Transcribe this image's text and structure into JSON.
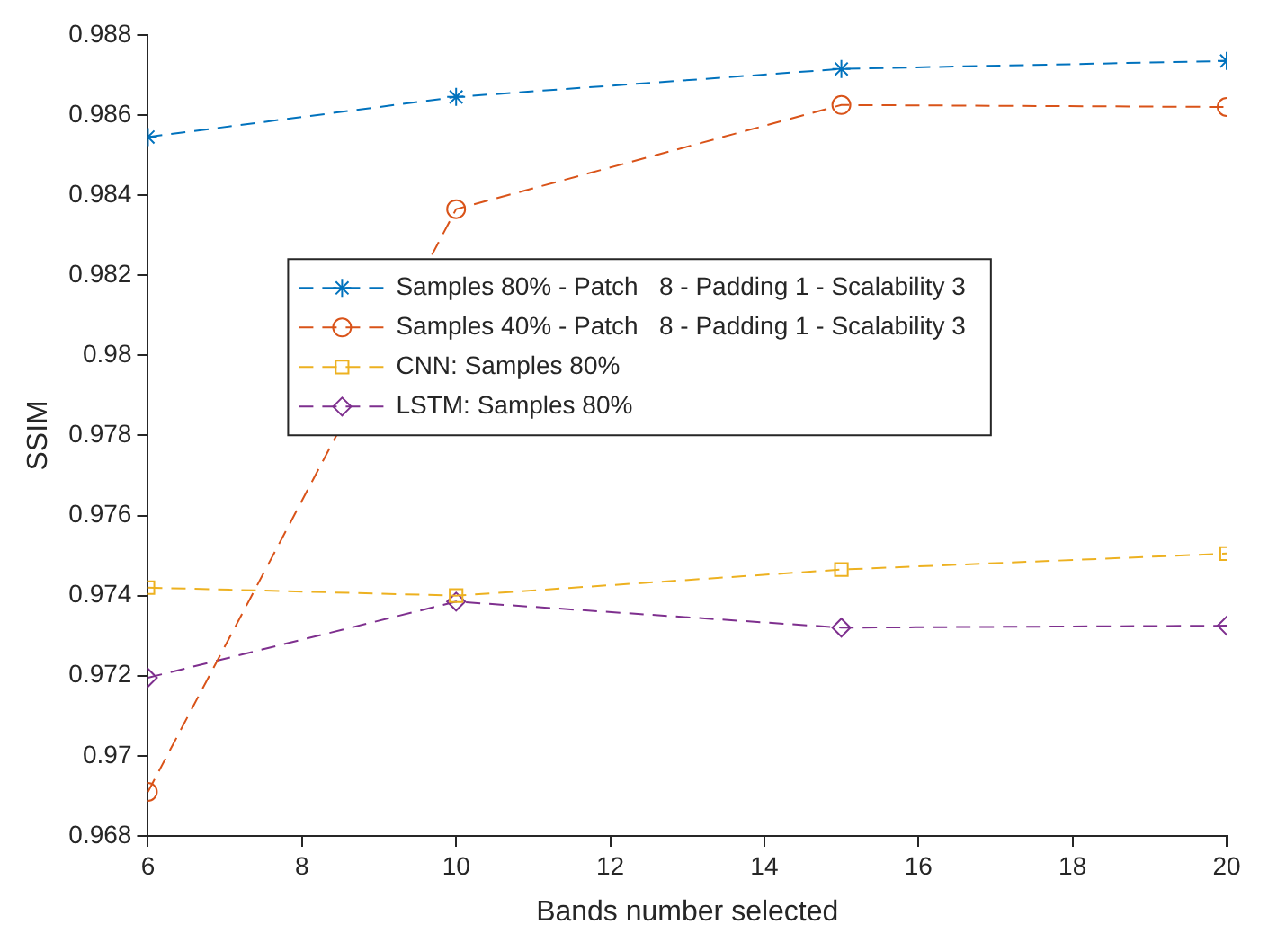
{
  "chart_data": {
    "type": "line",
    "xlabel": "Bands number selected",
    "ylabel": "SSIM",
    "x": [
      6,
      10,
      15,
      20
    ],
    "xlim": [
      6,
      20
    ],
    "xticks": [
      6,
      8,
      10,
      12,
      14,
      16,
      18,
      20
    ],
    "ylim": [
      0.968,
      0.988
    ],
    "yticks": [
      0.968,
      0.97,
      0.972,
      0.974,
      0.976,
      0.978,
      0.98,
      0.982,
      0.984,
      0.986,
      0.988
    ],
    "grid": false,
    "legend": "left",
    "line_style": "dashed",
    "series": [
      {
        "name": "Samples 80% - Patch   8 - Padding 1 - Scalability 3",
        "color": "#0072bd",
        "marker": "cross",
        "values": [
          0.98545,
          0.98645,
          0.98715,
          0.98735
        ]
      },
      {
        "name": "Samples 40% - Patch   8 - Padding 1 - Scalability 3",
        "color": "#d95319",
        "marker": "circle",
        "values": [
          0.9691,
          0.98365,
          0.98625,
          0.9862
        ]
      },
      {
        "name": "CNN: Samples 80%",
        "color": "#edb120",
        "marker": "square",
        "values": [
          0.9742,
          0.974,
          0.97465,
          0.97505
        ]
      },
      {
        "name": "LSTM: Samples 80%",
        "color": "#7e2f8e",
        "marker": "diamond",
        "values": [
          0.97195,
          0.97385,
          0.9732,
          0.97325
        ]
      }
    ]
  }
}
